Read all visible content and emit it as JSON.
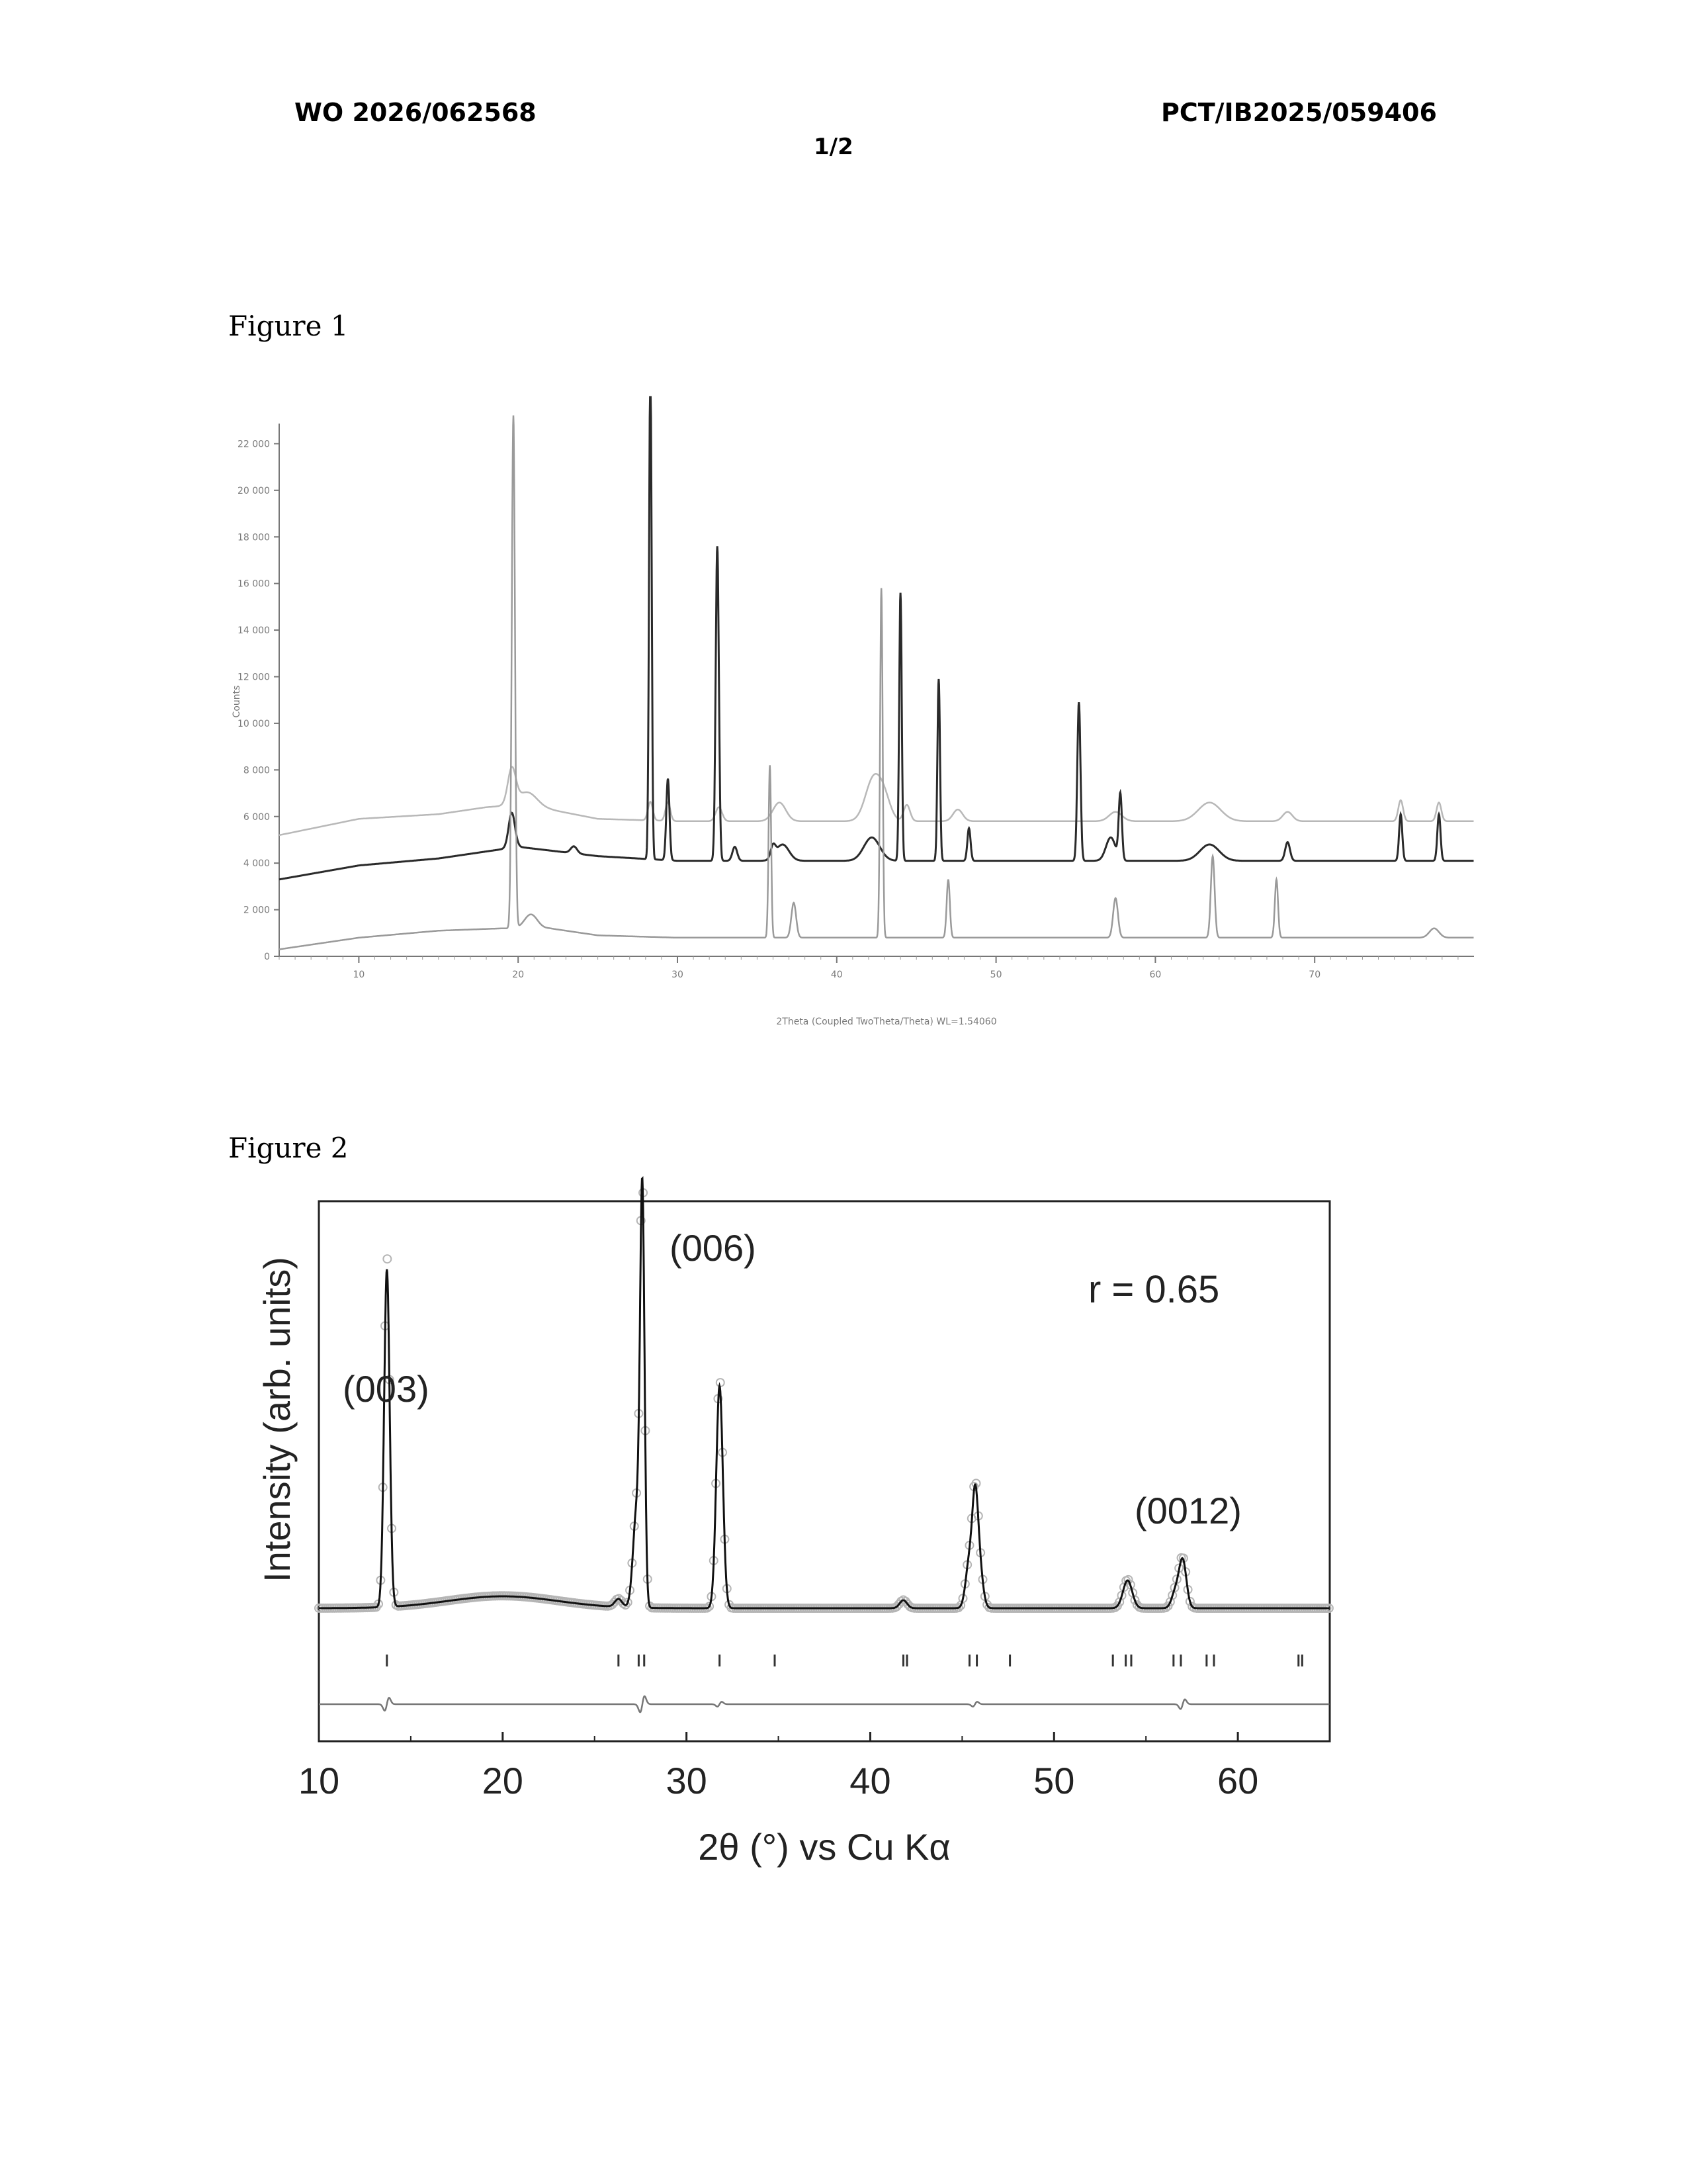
{
  "header": {
    "left": "WO 2026/062568",
    "right": "PCT/IB2025/059406",
    "page": "1/2"
  },
  "figures": [
    {
      "label": "Figure 1"
    },
    {
      "label": "Figure 2"
    }
  ],
  "chart_data": [
    {
      "type": "line",
      "title": "",
      "xlabel": "2Theta (Coupled TwoTheta/Theta) WL=1.54060",
      "ylabel": "Counts",
      "xlim": [
        5,
        80
      ],
      "ylim": [
        0,
        24000
      ],
      "xticks": [
        10,
        20,
        30,
        40,
        50,
        60,
        70
      ],
      "yticks": [
        "0",
        "2 000",
        "4 000",
        "6 000",
        "8 000",
        "10 000",
        "12 000",
        "14 000",
        "16 000",
        "18 000",
        "20 000",
        "22 000"
      ],
      "series": [
        {
          "color": "#b8b8b8",
          "baseline": [
            [
              5,
              5200
            ],
            [
              10,
              5900
            ],
            [
              15,
              6100
            ],
            [
              18,
              6400
            ],
            [
              20,
              6500
            ],
            [
              22,
              6300
            ],
            [
              25,
              5900
            ],
            [
              30,
              5800
            ],
            [
              40,
              5800
            ],
            [
              50,
              5800
            ],
            [
              60,
              5800
            ],
            [
              80,
              5800
            ]
          ],
          "peaks": [
            [
              19.6,
              1500,
              0.25
            ],
            [
              20.6,
              600,
              0.6
            ],
            [
              28.3,
              800,
              0.15
            ],
            [
              29.4,
              800,
              0.15
            ],
            [
              32.6,
              600,
              0.2
            ],
            [
              36.4,
              800,
              0.4
            ],
            [
              42.3,
              1800,
              0.5
            ],
            [
              43.0,
              800,
              0.4
            ],
            [
              44.4,
              700,
              0.2
            ],
            [
              47.6,
              500,
              0.3
            ],
            [
              57.5,
              400,
              0.4
            ],
            [
              63.4,
              800,
              0.7
            ],
            [
              68.3,
              400,
              0.3
            ],
            [
              75.4,
              900,
              0.15
            ],
            [
              77.8,
              800,
              0.15
            ]
          ]
        },
        {
          "color": "#2a2a2a",
          "baseline": [
            [
              5,
              3300
            ],
            [
              10,
              3900
            ],
            [
              15,
              4200
            ],
            [
              18,
              4500
            ],
            [
              20,
              4700
            ],
            [
              25,
              4300
            ],
            [
              30,
              4100
            ],
            [
              40,
              4100
            ],
            [
              50,
              4100
            ],
            [
              60,
              4100
            ],
            [
              80,
              4100
            ]
          ],
          "peaks": [
            [
              19.6,
              1500,
              0.2
            ],
            [
              23.5,
              300,
              0.2
            ],
            [
              28.3,
              21500,
              0.08
            ],
            [
              29.4,
              3500,
              0.1
            ],
            [
              32.5,
              13500,
              0.1
            ],
            [
              33.6,
              600,
              0.15
            ],
            [
              36.0,
              500,
              0.15
            ],
            [
              36.6,
              700,
              0.4
            ],
            [
              42.2,
              1000,
              0.5
            ],
            [
              44.0,
              11500,
              0.08
            ],
            [
              46.4,
              7800,
              0.08
            ],
            [
              48.3,
              1400,
              0.1
            ],
            [
              55.2,
              6800,
              0.1
            ],
            [
              57.2,
              1000,
              0.3
            ],
            [
              57.8,
              2800,
              0.1
            ],
            [
              63.4,
              700,
              0.6
            ],
            [
              68.3,
              800,
              0.15
            ],
            [
              75.4,
              2000,
              0.1
            ],
            [
              77.8,
              2000,
              0.1
            ]
          ]
        },
        {
          "color": "#9a9a9a",
          "baseline": [
            [
              5,
              300
            ],
            [
              10,
              800
            ],
            [
              15,
              1100
            ],
            [
              19,
              1200
            ],
            [
              22,
              1200
            ],
            [
              25,
              900
            ],
            [
              30,
              800
            ],
            [
              40,
              800
            ],
            [
              50,
              800
            ],
            [
              60,
              800
            ],
            [
              80,
              800
            ]
          ],
          "peaks": [
            [
              19.7,
              22000,
              0.1
            ],
            [
              20.8,
              600,
              0.4
            ],
            [
              35.8,
              7400,
              0.08
            ],
            [
              37.3,
              1500,
              0.15
            ],
            [
              42.8,
              15000,
              0.08
            ],
            [
              47.0,
              2500,
              0.1
            ],
            [
              57.5,
              1700,
              0.15
            ],
            [
              63.6,
              3500,
              0.12
            ],
            [
              67.6,
              2500,
              0.1
            ],
            [
              77.5,
              400,
              0.3
            ]
          ]
        }
      ]
    },
    {
      "type": "scatter",
      "title": "",
      "xlabel": "2θ (°) vs Cu Kα",
      "ylabel": "Intensity (arb. units)",
      "xlim": [
        10,
        65
      ],
      "xticks": [
        10,
        20,
        30,
        40,
        50,
        60
      ],
      "annotations": [
        {
          "text": "(003)",
          "x": 13.7
        },
        {
          "text": "(006)",
          "x": 27.6
        },
        {
          "text": "(0012)",
          "x": 57.0
        },
        {
          "text": "r = 0.65",
          "x": 58
        }
      ],
      "peaks": [
        [
          13.7,
          850,
          0.15
        ],
        [
          20.0,
          30,
          3.0
        ],
        [
          26.3,
          20,
          0.2
        ],
        [
          27.3,
          250,
          0.2
        ],
        [
          27.6,
          1000,
          0.12
        ],
        [
          31.8,
          560,
          0.18
        ],
        [
          41.8,
          20,
          0.2
        ],
        [
          45.4,
          120,
          0.2
        ],
        [
          45.7,
          200,
          0.15
        ],
        [
          45.9,
          120,
          0.2
        ],
        [
          54.0,
          70,
          0.25
        ],
        [
          56.6,
          40,
          0.2
        ],
        [
          57.0,
          120,
          0.2
        ]
      ],
      "bragg_positions": [
        13.7,
        26.3,
        27.4,
        27.7,
        31.8,
        34.8,
        41.8,
        42.0,
        45.4,
        45.8,
        47.6,
        53.2,
        53.9,
        54.2,
        56.5,
        56.9,
        58.3,
        58.7,
        63.3,
        63.5
      ],
      "difference_features": [
        [
          13.7,
          8
        ],
        [
          27.6,
          10
        ],
        [
          31.8,
          3
        ],
        [
          45.7,
          3
        ],
        [
          57.0,
          6
        ]
      ]
    }
  ]
}
